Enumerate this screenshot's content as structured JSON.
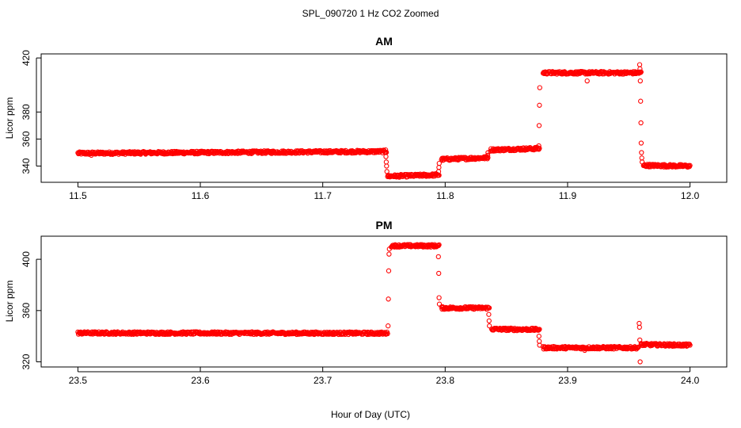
{
  "figure": {
    "title": "SPL_090720  1 Hz CO2 Zoomed",
    "xlabel": "Hour of Day (UTC)"
  },
  "chart_data": [
    {
      "type": "scatter",
      "title": "AM",
      "xlabel": "Hour of Day (UTC)",
      "ylabel": "Licor ppm",
      "xlim": [
        11.47,
        12.03
      ],
      "ylim": [
        328,
        423
      ],
      "xticks": [
        "11.5",
        "11.6",
        "11.7",
        "11.8",
        "11.9",
        "12.0"
      ],
      "yticks": [
        "340",
        "360",
        "380",
        "420"
      ],
      "ytick_values": [
        340,
        360,
        380,
        420
      ],
      "point_color": "#ff0000",
      "series": [
        {
          "name": "CO2",
          "segments": [
            {
              "x0": 11.5,
              "x1": 11.752,
              "y0": 349.5,
              "y1": 350.8
            },
            {
              "x0": 11.753,
              "x1": 11.795,
              "y0": 332.5,
              "y1": 333.5
            },
            {
              "x0": 11.797,
              "x1": 11.835,
              "y0": 345.0,
              "y1": 346.2
            },
            {
              "x0": 11.837,
              "x1": 11.877,
              "y0": 352.0,
              "y1": 353.0
            },
            {
              "x0": 11.88,
              "x1": 11.96,
              "y0": 409.0,
              "y1": 409.0
            },
            {
              "x0": 11.962,
              "x1": 12.0,
              "y0": 340.5,
              "y1": 340.0
            }
          ],
          "transitions": [
            {
              "x": 11.752,
              "y": [
                352,
                347,
                343,
                340,
                336
              ]
            },
            {
              "x": 11.795,
              "y": [
                336,
                339,
                342
              ]
            },
            {
              "x": 11.835,
              "y": [
                348,
                350
              ]
            },
            {
              "x": 11.877,
              "y": [
                355,
                370,
                385,
                398
              ]
            },
            {
              "x": 11.96,
              "y": [
                415,
                412,
                403,
                388,
                372,
                357,
                350,
                346,
                343
              ]
            }
          ],
          "outliers": [
            {
              "x": 11.916,
              "y": 403
            },
            {
              "x": 11.511,
              "y": 348
            }
          ]
        }
      ]
    },
    {
      "type": "scatter",
      "title": "PM",
      "xlabel": "Hour of Day (UTC)",
      "ylabel": "Licor ppm",
      "xlim": [
        23.47,
        24.03
      ],
      "ylim": [
        316,
        418
      ],
      "xticks": [
        "23.5",
        "23.6",
        "23.7",
        "23.8",
        "23.9",
        "24.0"
      ],
      "yticks": [
        "320",
        "360",
        "400"
      ],
      "ytick_values": [
        320,
        360,
        400
      ],
      "point_color": "#ff0000",
      "series": [
        {
          "name": "CO2",
          "segments": [
            {
              "x0": 23.5,
              "x1": 23.753,
              "y0": 342.5,
              "y1": 342.3
            },
            {
              "x0": 23.756,
              "x1": 23.795,
              "y0": 410.5,
              "y1": 410.5
            },
            {
              "x0": 23.797,
              "x1": 23.836,
              "y0": 362.0,
              "y1": 362.0
            },
            {
              "x0": 23.838,
              "x1": 23.877,
              "y0": 345.5,
              "y1": 345.2
            },
            {
              "x0": 23.88,
              "x1": 23.958,
              "y0": 331.0,
              "y1": 331.0
            },
            {
              "x0": 23.96,
              "x1": 24.0,
              "y0": 333.5,
              "y1": 333.0
            }
          ],
          "transitions": [
            {
              "x": 23.754,
              "y": [
                348,
                369,
                391,
                404,
                408
              ]
            },
            {
              "x": 23.795,
              "y": [
                402,
                389,
                370,
                365
              ]
            },
            {
              "x": 23.836,
              "y": [
                357,
                352,
                348
              ]
            },
            {
              "x": 23.877,
              "y": [
                340,
                336,
                333
              ]
            },
            {
              "x": 23.959,
              "y": [
                350,
                347,
                337,
                320
              ]
            }
          ],
          "outliers": [
            {
              "x": 23.914,
              "y": 329
            }
          ]
        }
      ]
    }
  ]
}
